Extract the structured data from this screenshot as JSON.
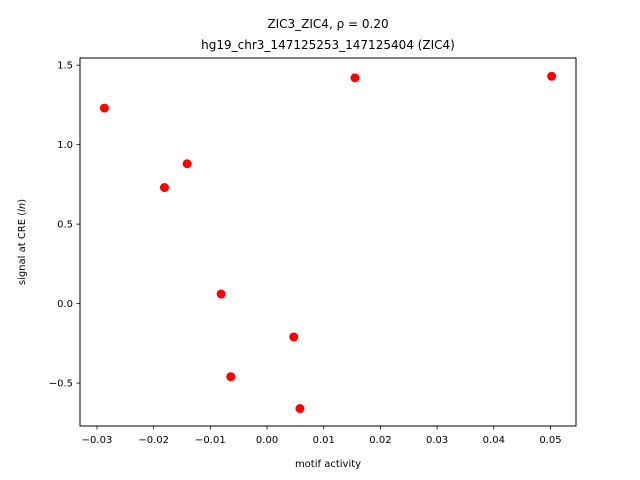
{
  "chart_data": {
    "type": "scatter",
    "title_line1": "ZIC3_ZIC4, ρ = 0.20",
    "title_line2": "hg19_chr3_147125253_147125404 (ZIC4)",
    "xlabel": "motif activity",
    "ylabel": "signal at CRE (ln)",
    "ylabel_prefix": "signal at CRE (",
    "ylabel_var": "ln",
    "ylabel_suffix": ")",
    "xlim": [
      -0.033,
      0.0545
    ],
    "ylim": [
      -0.77,
      1.545
    ],
    "x_ticks": [
      -0.03,
      -0.02,
      -0.01,
      0.0,
      0.01,
      0.02,
      0.03,
      0.04,
      0.05
    ],
    "x_tick_labels": [
      "−0.03",
      "−0.02",
      "−0.01",
      "0.00",
      "0.01",
      "0.02",
      "0.03",
      "0.04",
      "0.05"
    ],
    "y_ticks": [
      -0.5,
      0.0,
      0.5,
      1.0,
      1.5
    ],
    "y_tick_labels": [
      "−0.5",
      "0.0",
      "0.5",
      "1.0",
      "1.5"
    ],
    "grid": false,
    "marker_color": "#ff0000",
    "points": [
      {
        "x": -0.0287,
        "y": 1.23
      },
      {
        "x": -0.0181,
        "y": 0.73
      },
      {
        "x": -0.0141,
        "y": 0.88
      },
      {
        "x": -0.0081,
        "y": 0.06
      },
      {
        "x": -0.0064,
        "y": -0.46
      },
      {
        "x": 0.0047,
        "y": -0.21
      },
      {
        "x": 0.0058,
        "y": -0.66
      },
      {
        "x": 0.0155,
        "y": 1.42
      },
      {
        "x": 0.0502,
        "y": 1.43
      }
    ]
  }
}
